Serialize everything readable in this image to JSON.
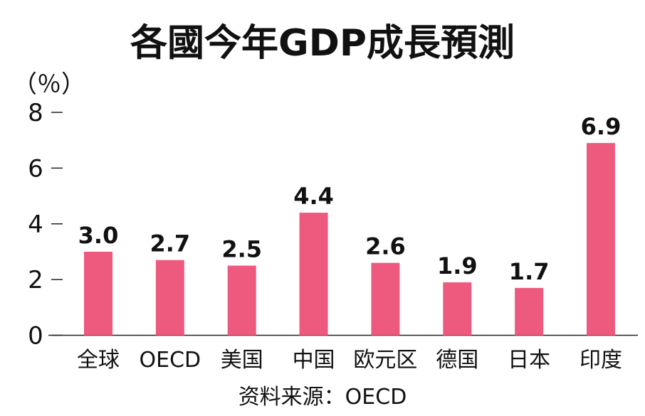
{
  "chart_data": {
    "type": "bar",
    "title": "各國今年GDP成長預測",
    "ylabel": "（％）",
    "categories": [
      "全球",
      "OECD",
      "美国",
      "中国",
      "欧元区",
      "德国",
      "日本",
      "印度"
    ],
    "values": [
      3.0,
      2.7,
      2.5,
      4.4,
      2.6,
      1.9,
      1.7,
      6.9
    ],
    "value_labels": [
      "3.0",
      "2.7",
      "2.5",
      "4.4",
      "2.6",
      "1.9",
      "1.7",
      "6.9"
    ],
    "ylim": [
      0,
      8
    ],
    "yticks": [
      0,
      2,
      4,
      6,
      8
    ],
    "ytick_labels": [
      "0",
      "2",
      "4",
      "6",
      "8"
    ],
    "source": "资料来源：OECD",
    "bar_color": "#ee5a7e",
    "grid": false,
    "legend": "none"
  }
}
